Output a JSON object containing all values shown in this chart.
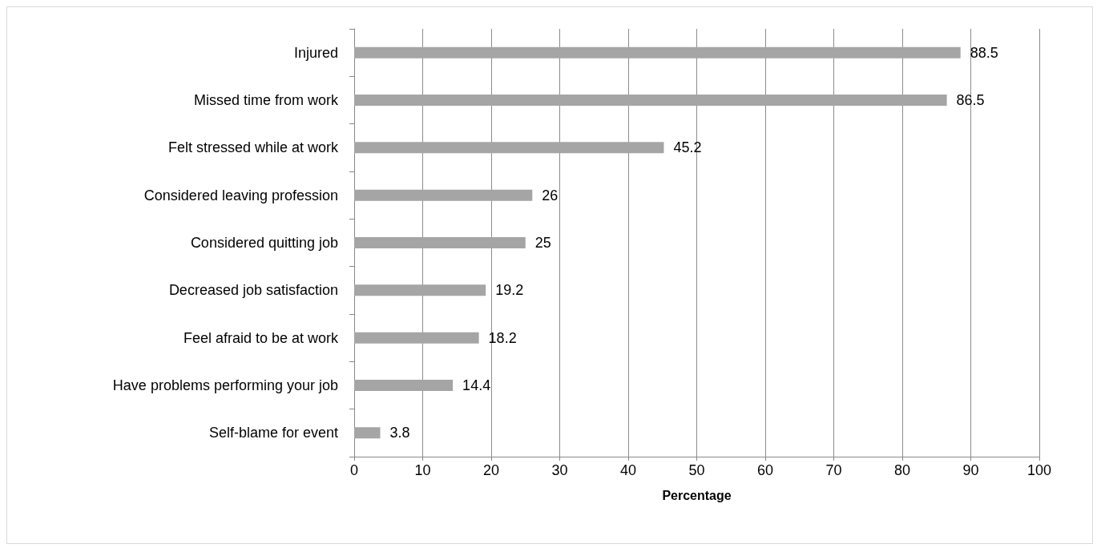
{
  "chart_data": {
    "type": "bar",
    "orientation": "horizontal",
    "xlabel": "Percentage",
    "categories": [
      "Injured",
      "Missed time from work",
      "Felt stressed while at work",
      "Considered leaving profession",
      "Considered quitting job",
      "Decreased job satisfaction",
      "Feel afraid to be at work",
      "Have problems performing your job",
      "Self-blame for event"
    ],
    "values": [
      88.5,
      86.5,
      45.2,
      26,
      25,
      19.2,
      18.2,
      14.4,
      3.8
    ],
    "color": "#a5a5a5",
    "xlim": [
      0,
      100
    ],
    "xticks": [
      0,
      10,
      20,
      30,
      40,
      50,
      60,
      70,
      80,
      90,
      100
    ],
    "grid": "x",
    "data_labels": true
  }
}
